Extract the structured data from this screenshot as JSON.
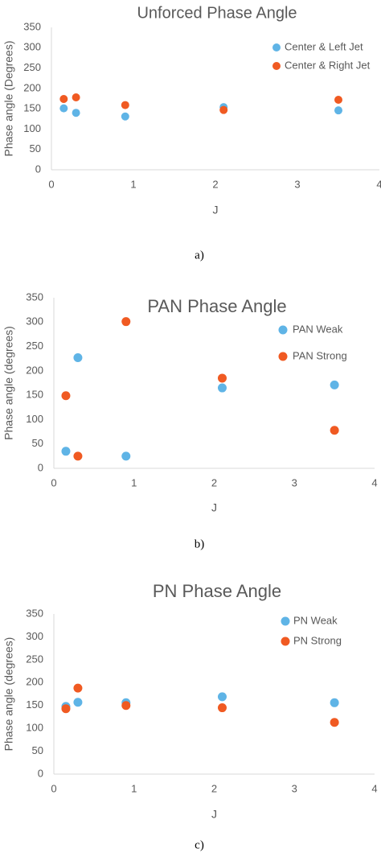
{
  "colors": {
    "series1": "#5fb4e6",
    "series2": "#f05a22",
    "axis": "#d9d9d9",
    "text": "#595959"
  },
  "chart_data": [
    {
      "type": "scatter",
      "title": "Unforced Phase Angle",
      "xlabel": "J",
      "ylabel": "Phase angle (Degrees)",
      "xlim": [
        0,
        4
      ],
      "ylim": [
        0,
        350
      ],
      "xticks": [
        "0",
        "1",
        "2",
        "3",
        "4"
      ],
      "yticks": [
        "0",
        "50",
        "100",
        "150",
        "200",
        "250",
        "300",
        "350"
      ],
      "grid": false,
      "legend": "top-right",
      "caption": "a)",
      "series": [
        {
          "name": "Center & Left Jet",
          "x": [
            0.15,
            0.3,
            0.9,
            2.1,
            3.5
          ],
          "y": [
            151,
            140,
            131,
            154,
            146
          ]
        },
        {
          "name": "Center & Right Jet",
          "x": [
            0.15,
            0.3,
            0.9,
            2.1,
            3.5
          ],
          "y": [
            174,
            178,
            159,
            147,
            172
          ]
        }
      ]
    },
    {
      "type": "scatter",
      "title": "PAN Phase Angle",
      "xlabel": "J",
      "ylabel": "Phase angle (degrees)",
      "xlim": [
        0,
        4
      ],
      "ylim": [
        0,
        350
      ],
      "xticks": [
        "0",
        "1",
        "2",
        "3",
        "4"
      ],
      "yticks": [
        "0",
        "50",
        "100",
        "150",
        "200",
        "250",
        "300",
        "350"
      ],
      "grid": false,
      "legend": "top-right",
      "caption": "b)",
      "series": [
        {
          "name": "PAN Weak",
          "x": [
            0.15,
            0.3,
            0.9,
            2.1,
            3.5
          ],
          "y": [
            35,
            227,
            25,
            165,
            171
          ]
        },
        {
          "name": "PAN Strong",
          "x": [
            0.15,
            0.3,
            0.9,
            2.1,
            3.5
          ],
          "y": [
            149,
            25,
            301,
            185,
            78
          ]
        }
      ]
    },
    {
      "type": "scatter",
      "title": "PN Phase Angle",
      "xlabel": "J",
      "ylabel": "Phase angle (degrees)",
      "xlim": [
        0,
        4
      ],
      "ylim": [
        0,
        350
      ],
      "xticks": [
        "0",
        "1",
        "2",
        "3",
        "4"
      ],
      "yticks": [
        "0",
        "50",
        "100",
        "150",
        "200",
        "250",
        "300",
        "350"
      ],
      "grid": false,
      "legend": "top-right",
      "caption": "c)",
      "series": [
        {
          "name": "PN Weak",
          "x": [
            0.15,
            0.3,
            0.9,
            2.1,
            3.5
          ],
          "y": [
            148,
            157,
            156,
            169,
            156
          ]
        },
        {
          "name": "PN Strong",
          "x": [
            0.15,
            0.3,
            0.9,
            2.1,
            3.5
          ],
          "y": [
            143,
            188,
            150,
            145,
            113
          ]
        }
      ]
    }
  ]
}
